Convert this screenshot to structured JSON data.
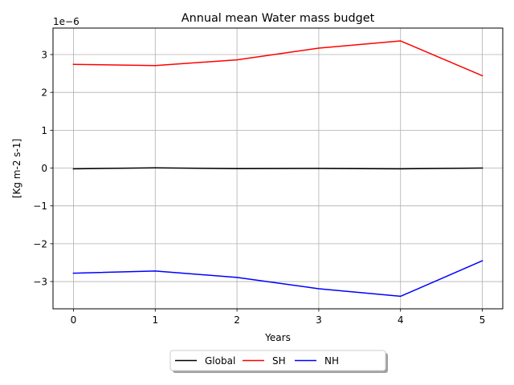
{
  "chart_data": {
    "type": "line",
    "title": "Annual mean Water mass budget",
    "xlabel": "Years",
    "ylabel": "[Kg m-2 s-1]",
    "y_offset_label": "1e−6",
    "y_scale": 1e-06,
    "x": [
      0,
      1,
      2,
      3,
      4,
      5
    ],
    "xlim": [
      -0.25,
      5.25
    ],
    "ylim": [
      -3.72e-06,
      3.7e-06
    ],
    "xticks": [
      0,
      1,
      2,
      3,
      4,
      5
    ],
    "xtick_labels": [
      "0",
      "1",
      "2",
      "3",
      "4",
      "5"
    ],
    "yticks": [
      -3e-06,
      -2e-06,
      -1e-06,
      0,
      1e-06,
      2e-06,
      3e-06
    ],
    "ytick_labels": [
      "−3",
      "−2",
      "−1",
      "0",
      "1",
      "2",
      "3"
    ],
    "grid": true,
    "legend_position": "bottom-center, outside plot area",
    "series": [
      {
        "name": "Global",
        "color": "#000000",
        "values": [
          -2e-08,
          5e-09,
          -1.5e-08,
          -1e-08,
          -2e-08,
          0.0
        ]
      },
      {
        "name": "SH",
        "color": "#ff0000",
        "values": [
          2.74e-06,
          2.71e-06,
          2.86e-06,
          3.17e-06,
          3.36e-06,
          2.44e-06
        ]
      },
      {
        "name": "NH",
        "color": "#0000ff",
        "values": [
          -2.78e-06,
          -2.72e-06,
          -2.89e-06,
          -3.19e-06,
          -3.39e-06,
          -2.45e-06
        ]
      }
    ]
  }
}
